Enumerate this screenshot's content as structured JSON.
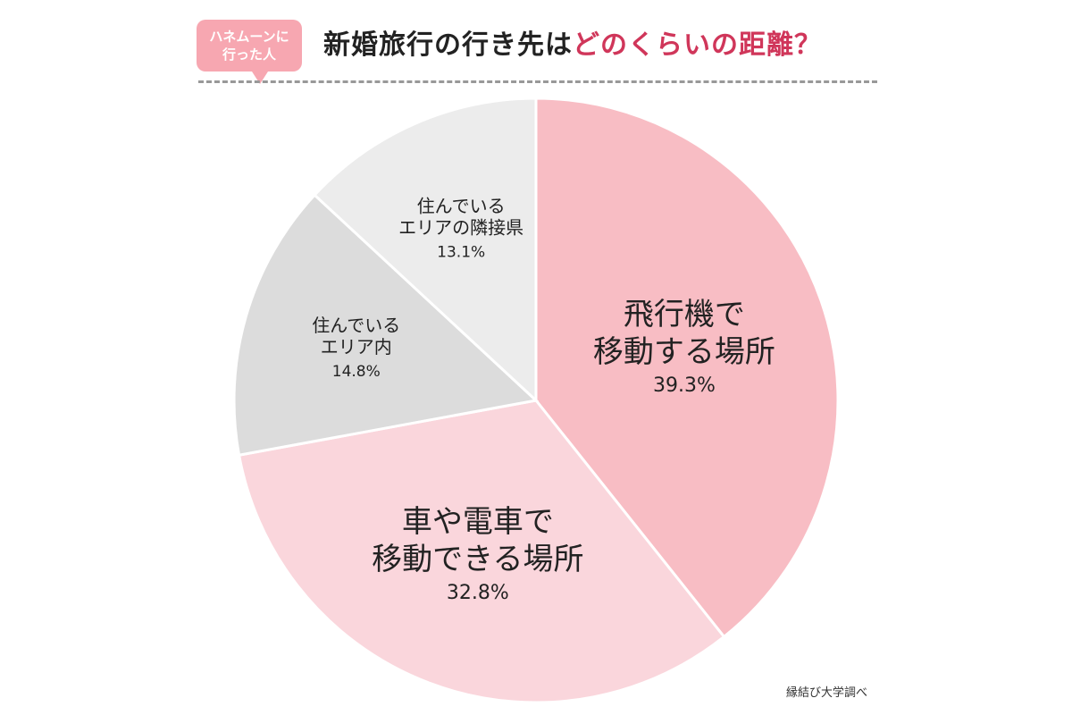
{
  "badge": {
    "line1": "ハネムーンに",
    "line2": "行った人"
  },
  "title": {
    "part1": "新婚旅行の行き先は",
    "part2": "どのくらいの距離？"
  },
  "source": "縁結び大学調べ",
  "colors": {
    "airplane": "#f8bdc4",
    "car_train": "#fad6dc",
    "same_area": "#dcdcdc",
    "neighbor_pref": "#ececec",
    "title_accent": "#d0365a",
    "badge": "#f7a7b1"
  },
  "chart_data": {
    "type": "pie",
    "start_angle_deg": 0,
    "direction": "clockwise",
    "slices": [
      {
        "label_lines": [
          "飛行機で",
          "移動する場所"
        ],
        "value_text": "39.3%",
        "value": 39.3,
        "color": "#f8bdc4",
        "label_size": "large"
      },
      {
        "label_lines": [
          "車や電車で",
          "移動できる場所"
        ],
        "value_text": "32.8%",
        "value": 32.8,
        "color": "#fad6dc",
        "label_size": "large"
      },
      {
        "label_lines": [
          "住んでいる",
          "エリア内"
        ],
        "value_text": "14.8%",
        "value": 14.8,
        "color": "#dcdcdc",
        "label_size": "small"
      },
      {
        "label_lines": [
          "住んでいる",
          "エリアの隣接県"
        ],
        "value_text": "13.1%",
        "value": 13.1,
        "color": "#ececec",
        "label_size": "small"
      }
    ]
  }
}
